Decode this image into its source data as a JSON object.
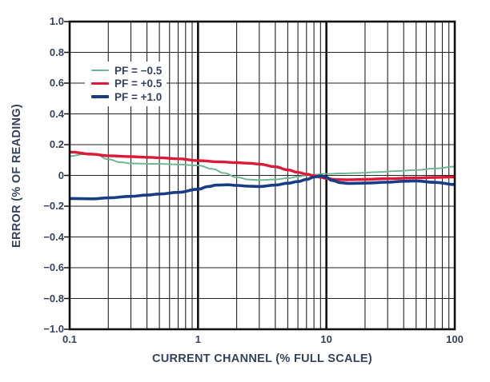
{
  "colors": {
    "background": "#ffffff",
    "text": "#36415e",
    "grid_minor": "#222222",
    "grid_major": "#111111",
    "frame": "#111111"
  },
  "chart_data": {
    "type": "line",
    "title": "",
    "x_axis": {
      "label": "CURRENT CHANNEL (% FULL SCALE)",
      "scale": "log",
      "range": [
        0.1,
        100
      ],
      "ticks": [
        0.1,
        1,
        10,
        100
      ],
      "tick_labels": [
        "0.1",
        "1",
        "10",
        "100"
      ],
      "minor_grid": true
    },
    "y_axis": {
      "label": "ERROR (% OF READING)",
      "scale": "linear",
      "range": [
        -1.0,
        1.0
      ],
      "ticks": [
        1.0,
        0.8,
        0.6,
        0.4,
        0.2,
        0.0,
        -0.2,
        -0.4,
        -0.6,
        -0.8,
        -1.0
      ],
      "tick_labels": [
        "1.0",
        "0.8",
        "0.6",
        "0.4",
        "0.2",
        "0",
        "−0.2",
        "−0.4",
        "−0.6",
        "−0.8",
        "−1.0"
      ]
    },
    "grid": true,
    "legend": {
      "position": "top-left"
    },
    "series": [
      {
        "name": "PF = −0.5",
        "color": "#6db491",
        "width": 1.9,
        "points": [
          [
            0.1,
            0.125
          ],
          [
            0.13,
            0.138
          ],
          [
            0.16,
            0.135
          ],
          [
            0.2,
            0.105
          ],
          [
            0.25,
            0.085
          ],
          [
            0.3,
            0.078
          ],
          [
            0.4,
            0.076
          ],
          [
            0.5,
            0.075
          ],
          [
            0.7,
            0.071
          ],
          [
            1.0,
            0.065
          ],
          [
            1.3,
            0.042
          ],
          [
            1.6,
            0.015
          ],
          [
            2.0,
            -0.012
          ],
          [
            2.5,
            -0.027
          ],
          [
            3.0,
            -0.03
          ],
          [
            4.0,
            -0.026
          ],
          [
            5.0,
            -0.018
          ],
          [
            6.0,
            -0.008
          ],
          [
            7.0,
            0.0
          ],
          [
            8.0,
            0.005
          ],
          [
            10,
            0.01
          ],
          [
            13,
            0.013
          ],
          [
            18,
            0.016
          ],
          [
            25,
            0.022
          ],
          [
            35,
            0.028
          ],
          [
            50,
            0.035
          ],
          [
            70,
            0.045
          ],
          [
            100,
            0.057
          ]
        ]
      },
      {
        "name": "PF = +0.5",
        "color": "#dc1a38",
        "width": 3.4,
        "points": [
          [
            0.1,
            0.152
          ],
          [
            0.15,
            0.138
          ],
          [
            0.2,
            0.128
          ],
          [
            0.3,
            0.122
          ],
          [
            0.4,
            0.118
          ],
          [
            0.5,
            0.115
          ],
          [
            0.7,
            0.108
          ],
          [
            1.0,
            0.096
          ],
          [
            1.5,
            0.088
          ],
          [
            2.0,
            0.083
          ],
          [
            2.5,
            0.079
          ],
          [
            3.0,
            0.073
          ],
          [
            4.0,
            0.056
          ],
          [
            5.0,
            0.036
          ],
          [
            6.0,
            0.02
          ],
          [
            7.0,
            0.008
          ],
          [
            8.0,
            -0.002
          ],
          [
            9.0,
            -0.012
          ],
          [
            10,
            -0.02
          ],
          [
            12,
            -0.027
          ],
          [
            15,
            -0.028
          ],
          [
            20,
            -0.026
          ],
          [
            30,
            -0.021
          ],
          [
            50,
            -0.016
          ],
          [
            70,
            -0.013
          ],
          [
            100,
            -0.01
          ]
        ]
      },
      {
        "name": "PF = +1.0",
        "color": "#183c85",
        "width": 3.6,
        "points": [
          [
            0.1,
            -0.15
          ],
          [
            0.15,
            -0.152
          ],
          [
            0.2,
            -0.146
          ],
          [
            0.3,
            -0.136
          ],
          [
            0.4,
            -0.128
          ],
          [
            0.5,
            -0.121
          ],
          [
            0.7,
            -0.11
          ],
          [
            1.0,
            -0.09
          ],
          [
            1.2,
            -0.072
          ],
          [
            1.4,
            -0.063
          ],
          [
            1.7,
            -0.061
          ],
          [
            2.0,
            -0.065
          ],
          [
            2.5,
            -0.07
          ],
          [
            3.0,
            -0.072
          ],
          [
            4.0,
            -0.063
          ],
          [
            5.0,
            -0.051
          ],
          [
            6.0,
            -0.04
          ],
          [
            7.0,
            -0.026
          ],
          [
            8.0,
            -0.011
          ],
          [
            9.0,
            -0.003
          ],
          [
            10,
            -0.013
          ],
          [
            11,
            -0.032
          ],
          [
            13,
            -0.048
          ],
          [
            15,
            -0.052
          ],
          [
            20,
            -0.05
          ],
          [
            30,
            -0.044
          ],
          [
            40,
            -0.038
          ],
          [
            50,
            -0.036
          ],
          [
            70,
            -0.045
          ],
          [
            100,
            -0.059
          ]
        ]
      }
    ]
  }
}
